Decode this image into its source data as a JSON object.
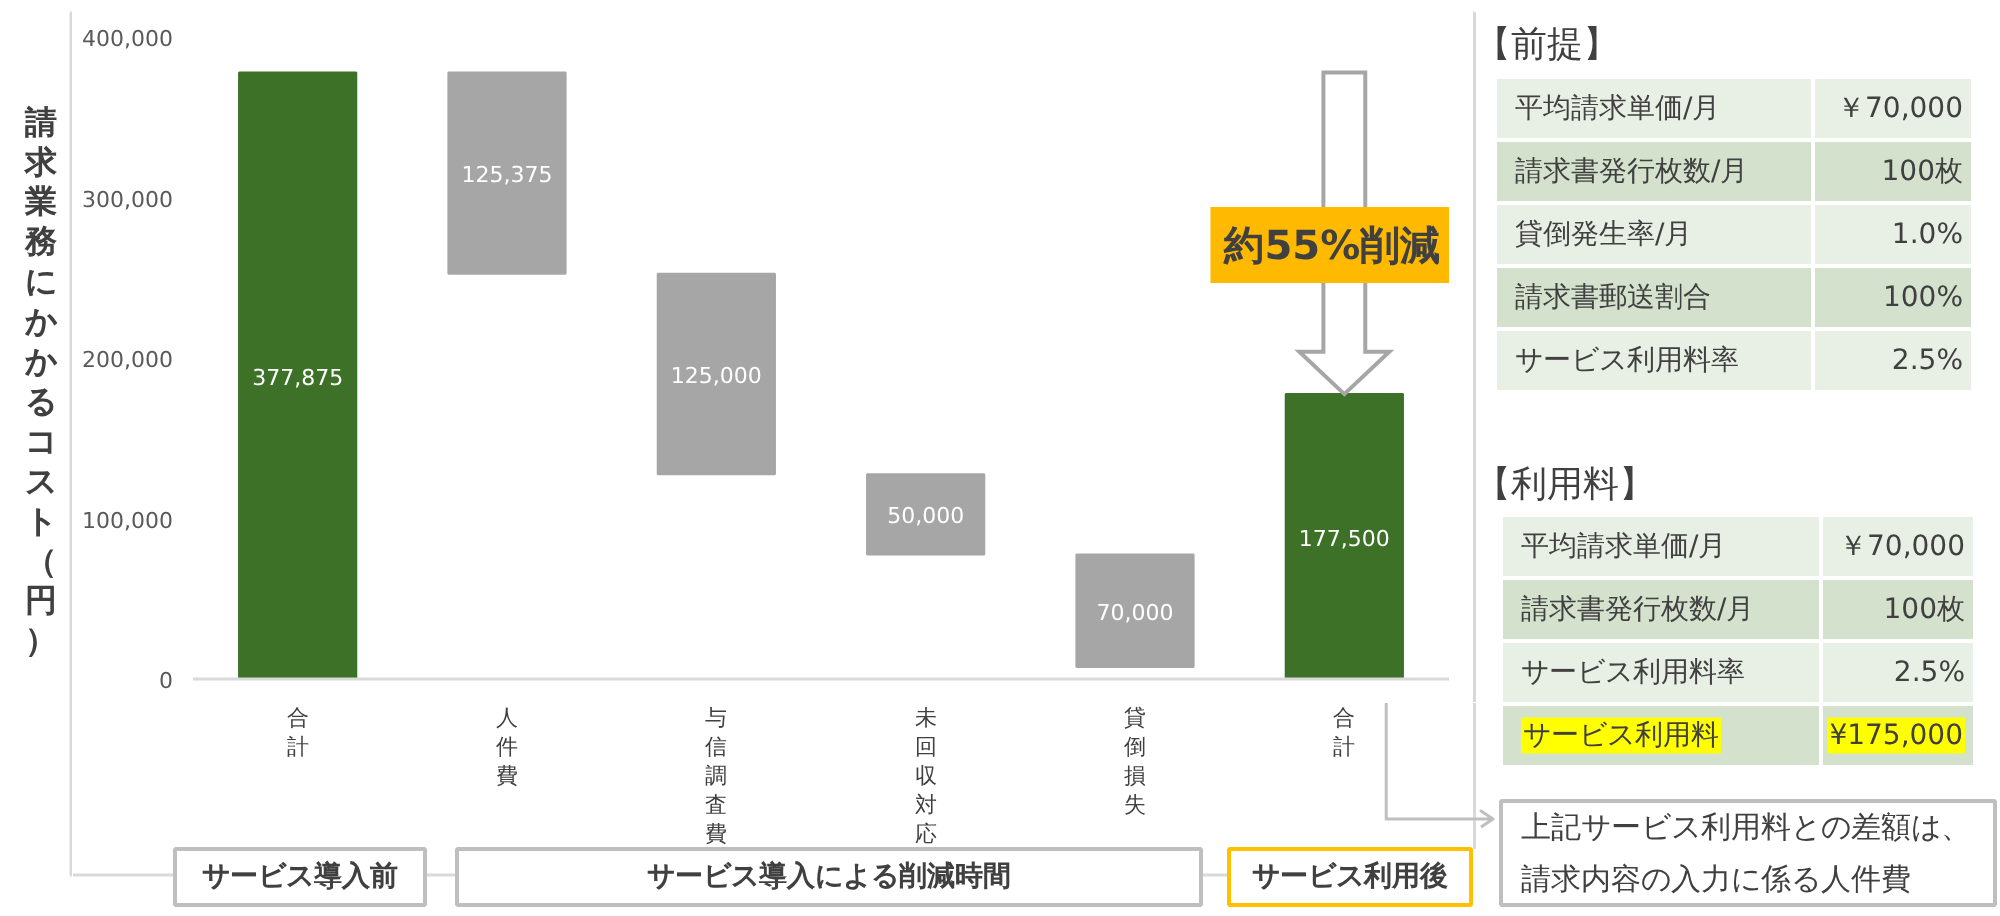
{
  "chart_data": {
    "type": "bar",
    "ylabel": "請求業務にかかるコスト（円）",
    "categories": [
      "合計",
      "人件費",
      "与信調査費",
      "未回収対応",
      "貸倒損失",
      "合計"
    ],
    "values": [
      377875,
      125375,
      125000,
      50000,
      70000,
      177500
    ],
    "base": [
      0,
      252500,
      127500,
      77500,
      7500,
      0
    ],
    "colors": [
      "#3d7128",
      "#a6a6a6",
      "#a6a6a6",
      "#a6a6a6",
      "#a6a6a6",
      "#3d7128"
    ],
    "value_labels": [
      "377,875",
      "125,375",
      "125,000",
      "50,000",
      "70,000",
      "177,500"
    ],
    "ylim": [
      0,
      400000
    ],
    "yticks": [
      0,
      {
        "value": 100000,
        "label": "100,000"
      },
      {
        "value": 200000,
        "label": "200,000"
      },
      {
        "value": 300000,
        "label": "300,000"
      },
      {
        "value": 400000,
        "label": "400,000"
      }
    ],
    "grid": false,
    "annotations": [
      "約55%削減",
      "サービス導入前",
      "サービス導入による削減時間",
      "サービス利用後",
      "【前提】",
      "平均請求単価/月",
      "￥70,000",
      "請求書発行枚数/月",
      "100枚",
      "貸倒発生率/月",
      "1.0%",
      "請求書郵送割合",
      "100%",
      "サービス利用料率",
      "2.5%",
      "【利用料】",
      "平均請求単価/月",
      "￥70,000",
      "請求書発行枚数/月",
      "100枚",
      "サービス利用料率",
      "2.5%",
      "サービス利用料",
      "¥175,000",
      "上記サービス利用料との差額は、請求内容の入力に係る人件費"
    ]
  }
}
